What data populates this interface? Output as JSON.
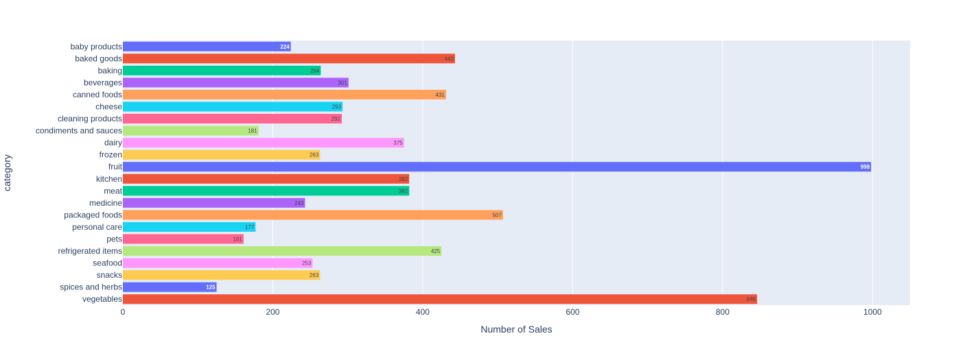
{
  "chart_data": {
    "type": "bar",
    "orientation": "horizontal",
    "title": "",
    "xlabel": "Number of Sales",
    "ylabel": "category",
    "xlim": [
      0,
      1050
    ],
    "x_ticks": [
      0,
      200,
      400,
      600,
      800,
      1000
    ],
    "grid": true,
    "legend": "none",
    "categories": [
      "baby products",
      "baked goods",
      "baking",
      "beverages",
      "canned foods",
      "cheese",
      "cleaning products",
      "condiments and sauces",
      "dairy",
      "frozen",
      "fruit",
      "kitchen",
      "meat",
      "medicine",
      "packaged foods",
      "personal care",
      "pets",
      "refrigerated items",
      "seafood",
      "snacks",
      "spices and herbs",
      "vegetables"
    ],
    "values": [
      224,
      443,
      264,
      301,
      431,
      293,
      292,
      181,
      375,
      263,
      998,
      382,
      382,
      243,
      507,
      177,
      161,
      425,
      253,
      263,
      125,
      846
    ],
    "colors": [
      "#636efa",
      "#ef553b",
      "#00cc96",
      "#ab63fa",
      "#ffa15a",
      "#19d3f3",
      "#ff6692",
      "#b6e880",
      "#ff97ff",
      "#fecb52",
      "#636efa",
      "#ef553b",
      "#00cc96",
      "#ab63fa",
      "#ffa15a",
      "#19d3f3",
      "#ff6692",
      "#b6e880",
      "#ff97ff",
      "#fecb52",
      "#636efa",
      "#ef553b"
    ],
    "label_colors": [
      "#ffffff",
      "#444444",
      "#444444",
      "#444444",
      "#444444",
      "#444444",
      "#444444",
      "#444444",
      "#444444",
      "#444444",
      "#ffffff",
      "#444444",
      "#444444",
      "#444444",
      "#444444",
      "#444444",
      "#444444",
      "#444444",
      "#444444",
      "#444444",
      "#ffffff",
      "#444444"
    ],
    "plot_background": "#e5ecf6",
    "gridline_color": "#ffffff",
    "text_color": "#2a3f5f"
  }
}
